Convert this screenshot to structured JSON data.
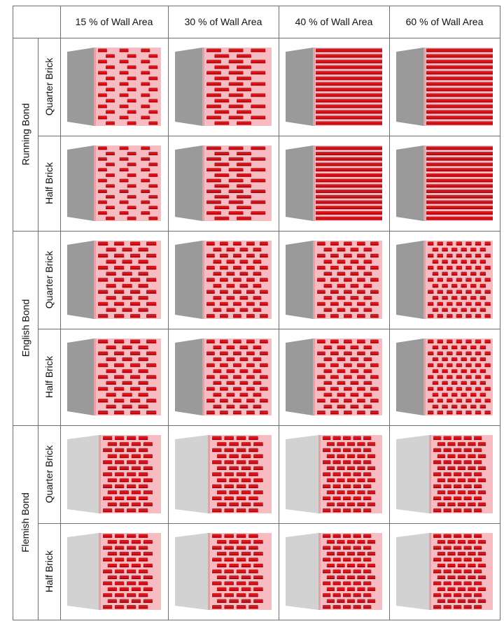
{
  "column_headers": [
    "15 %  of Wall Area",
    "30 %  of Wall Area",
    "40 %  of Wall Area",
    "60 %  of Wall Area"
  ],
  "column_percent_values": [
    15,
    30,
    40,
    60
  ],
  "bond_groups": [
    {
      "label": "Running Bond",
      "rows": [
        "Quarter Brick",
        "Half Brick"
      ]
    },
    {
      "label": "English Bond",
      "rows": [
        "Quarter Brick",
        "Half Brick"
      ]
    },
    {
      "label": "Flemish Bond",
      "rows": [
        "Quarter Brick",
        "Half Brick"
      ]
    }
  ],
  "colors": {
    "brick_red": "#d8141c",
    "brick_dark": "#8f0a10",
    "mortar_pink": "#f6bcc2",
    "side_grey": "#9a9a9a",
    "side_light": "#d2d2d2",
    "grid_line": "#6e6e6e"
  }
}
